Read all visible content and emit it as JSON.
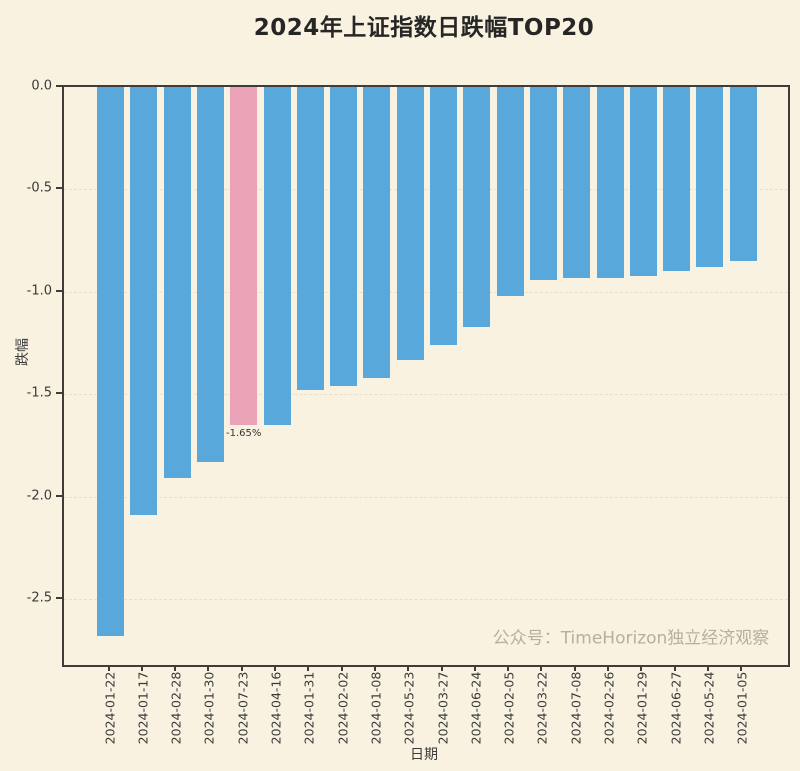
{
  "title": "2024年上证指数日跌幅TOP20",
  "watermark": "公众号：TimeHorizon独立经济观察",
  "chart_data": {
    "type": "bar",
    "title": "2024年上证指数日跌幅TOP20",
    "xlabel": "日期",
    "ylabel": "跌幅",
    "categories": [
      "2024-01-22",
      "2024-01-17",
      "2024-02-28",
      "2024-01-30",
      "2024-07-23",
      "2024-04-16",
      "2024-01-31",
      "2024-02-02",
      "2024-01-08",
      "2024-05-23",
      "2024-03-27",
      "2024-06-24",
      "2024-02-05",
      "2024-03-22",
      "2024-07-08",
      "2024-02-26",
      "2024-01-29",
      "2024-06-27",
      "2024-05-24",
      "2024-01-05"
    ],
    "values": [
      -2.68,
      -2.09,
      -1.91,
      -1.83,
      -1.65,
      -1.65,
      -1.48,
      -1.46,
      -1.42,
      -1.33,
      -1.26,
      -1.17,
      -1.02,
      -0.94,
      -0.93,
      -0.93,
      -0.92,
      -0.9,
      -0.88,
      -0.85
    ],
    "ylim": [
      -2.82,
      0
    ],
    "yticks": [
      0.0,
      -0.5,
      -1.0,
      -1.5,
      -2.0,
      -2.5
    ],
    "ytick_labels": [
      "0.0",
      "-0.5",
      "-1.0",
      "-1.5",
      "-2.0",
      "-2.5"
    ],
    "grid": true,
    "legend": null,
    "highlight_index": 4,
    "annotation": {
      "index": 4,
      "text": "-1.65%"
    },
    "colors": {
      "bar": "#58a8dc",
      "highlight": "#e9a2b6",
      "background": "#f9f2e0",
      "grid": "#e7dfc9",
      "axis": "#403c38",
      "tick_text": "#3a3a3a",
      "title_text": "#262626",
      "annotation_text": "#333333",
      "watermark_text": "#b9ae9b"
    }
  }
}
